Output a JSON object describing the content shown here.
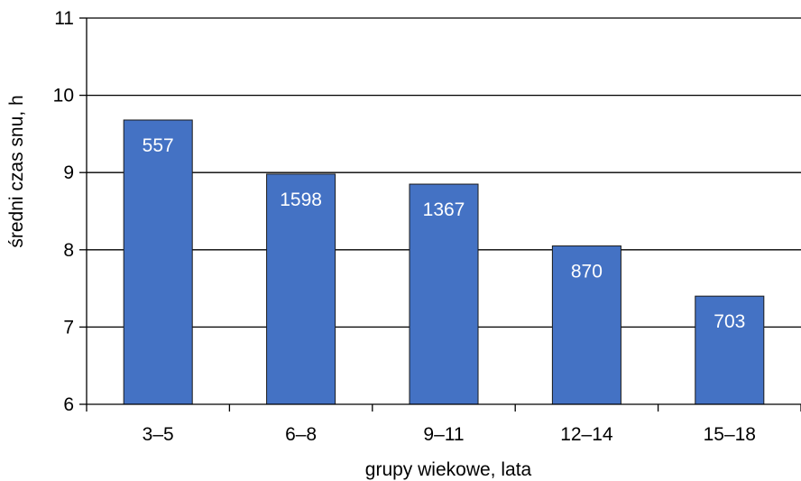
{
  "chart_data": {
    "type": "bar",
    "categories": [
      "3–5",
      "6–8",
      "9–11",
      "12–14",
      "15–18"
    ],
    "values": [
      9.68,
      8.98,
      8.85,
      8.05,
      7.4
    ],
    "data_labels": [
      "557",
      "1598",
      "1367",
      "870",
      "703"
    ],
    "xlabel": "grupy wiekowe, lata",
    "ylabel": "średni czas snu, h",
    "ylim": [
      6,
      11
    ],
    "yticks": [
      6,
      7,
      8,
      9,
      10,
      11
    ],
    "grid": true,
    "legend": "none",
    "colors": {
      "bar": "#4472C4",
      "data_label": "#FFFFFF",
      "axis": "#000000"
    }
  }
}
